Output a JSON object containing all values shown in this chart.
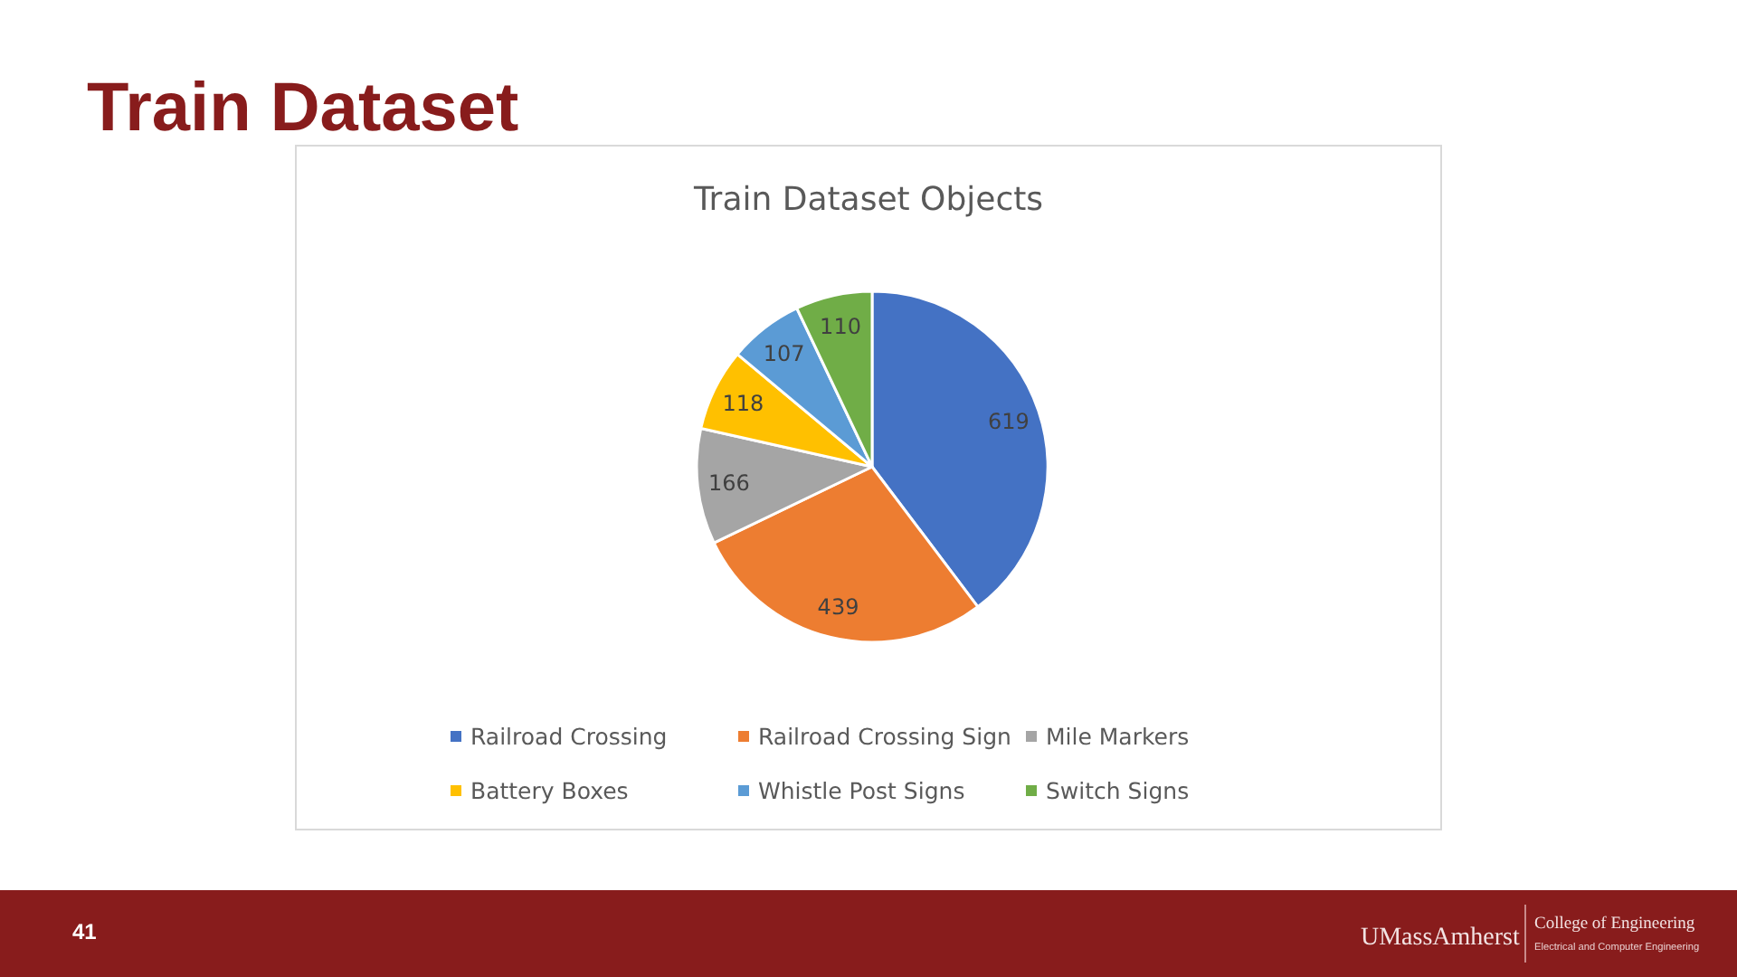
{
  "chart_data": {
    "type": "pie",
    "title": "Train Dataset",
    "subtitle": "Train Dataset Objects",
    "categories": [
      "Railroad Crossing",
      "Railroad Crossing Sign",
      "Mile Markers",
      "Battery Boxes",
      "Whistle Post Signs",
      "Switch Signs"
    ],
    "values": [
      619,
      439,
      166,
      118,
      107,
      110
    ],
    "colors": [
      "#4472c4",
      "#ed7d31",
      "#a5a5a5",
      "#ffc000",
      "#5b9bd5",
      "#70ad47"
    ],
    "data_labels": true,
    "legend": "bottom",
    "annotations": [
      "41",
      "UMassAmherst",
      "College of Engineering",
      "Electrical and Computer Engineering"
    ]
  }
}
